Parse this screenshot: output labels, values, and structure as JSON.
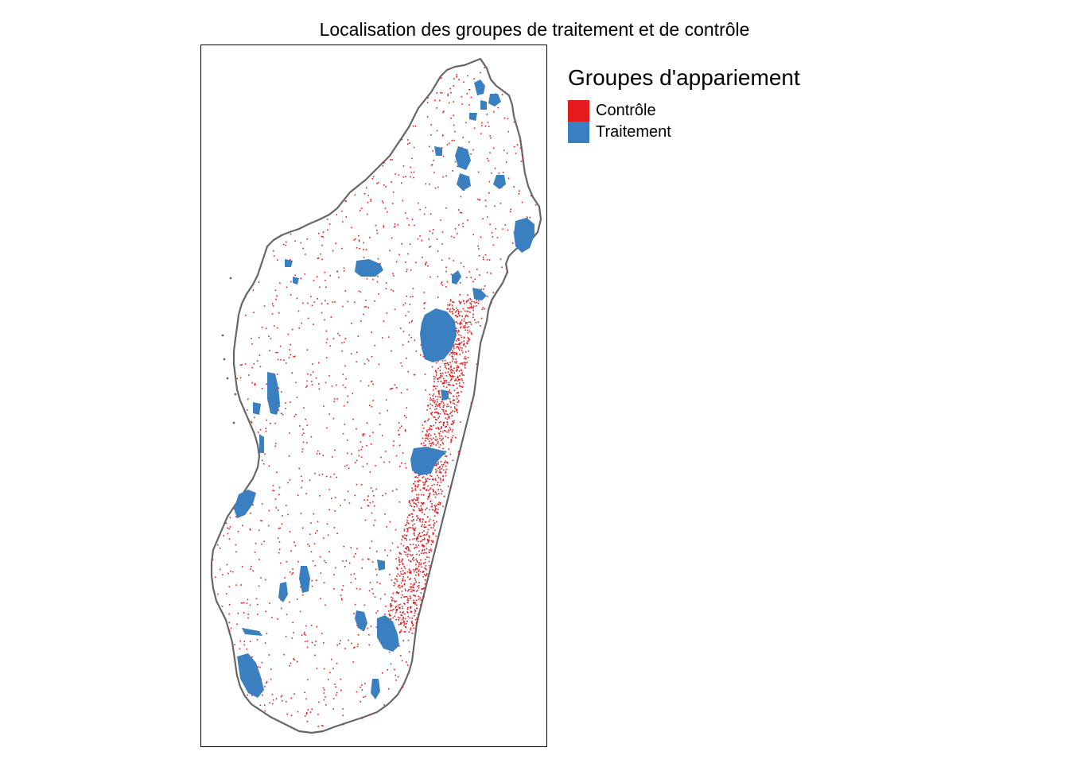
{
  "title": "Localisation des groupes de traitement et de contrôle",
  "legend": {
    "title": "Groupes d'appariement",
    "items": [
      {
        "label": "Contrôle",
        "color": "#e41a1c"
      },
      {
        "label": "Traitement",
        "color": "#3a7fbf"
      }
    ]
  },
  "colors": {
    "outline": "#666666",
    "frame": "#000000",
    "background": "#ffffff"
  }
}
